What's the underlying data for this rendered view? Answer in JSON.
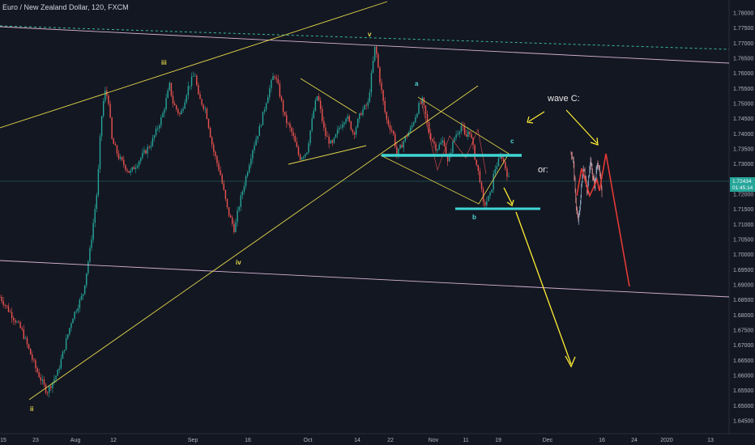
{
  "chart_data": {
    "type": "candlestick",
    "title": "Euro / New Zealand Dollar, 120, FXCM",
    "x_ticks": [
      "15",
      "23",
      "Aug",
      "12",
      "Sep",
      "16",
      "Oct",
      "14",
      "22",
      "Nov",
      "11",
      "19",
      "Dec",
      "16",
      "24",
      "2020",
      "13"
    ],
    "y_ticks": [
      "1.78000",
      "1.77500",
      "1.77000",
      "1.76500",
      "1.76000",
      "1.75500",
      "1.75000",
      "1.74500",
      "1.74000",
      "1.73500",
      "1.73000",
      "1.72500",
      "1.72000",
      "1.71500",
      "1.71000",
      "1.70500",
      "1.70000",
      "1.69500",
      "1.69000",
      "1.68500",
      "1.68000",
      "1.67500",
      "1.67000",
      "1.66500",
      "1.66000",
      "1.65500",
      "1.65000",
      "1.64500"
    ],
    "ylim": [
      1.644,
      1.782
    ],
    "current_price": "1.72434",
    "countdown": "01:45:14",
    "wave_labels": [
      "ii",
      "iii",
      "iv",
      "v",
      "a",
      "b",
      "c"
    ],
    "annotations": [
      "wave C:",
      "or:"
    ],
    "price_path": [
      [
        0,
        1.686
      ],
      [
        6,
        1.675
      ],
      [
        10,
        1.662
      ],
      [
        13,
        1.6545
      ],
      [
        16,
        1.661
      ],
      [
        20,
        1.679
      ],
      [
        23,
        1.687
      ],
      [
        25,
        1.702
      ],
      [
        27,
        1.722
      ],
      [
        28,
        1.744
      ],
      [
        29,
        1.754
      ],
      [
        30,
        1.752
      ],
      [
        31,
        1.738
      ],
      [
        33,
        1.732
      ],
      [
        36,
        1.727
      ],
      [
        39,
        1.732
      ],
      [
        42,
        1.737
      ],
      [
        45,
        1.746
      ],
      [
        47,
        1.756
      ],
      [
        48,
        1.75
      ],
      [
        50,
        1.746
      ],
      [
        52,
        1.755
      ],
      [
        54,
        1.76
      ],
      [
        55,
        1.752
      ],
      [
        57,
        1.748
      ],
      [
        59,
        1.735
      ],
      [
        61,
        1.727
      ],
      [
        63,
        1.715
      ],
      [
        65,
        1.708
      ],
      [
        66,
        1.715
      ],
      [
        68,
        1.725
      ],
      [
        70,
        1.735
      ],
      [
        72,
        1.742
      ],
      [
        74,
        1.752
      ],
      [
        76,
        1.76
      ],
      [
        77,
        1.756
      ],
      [
        79,
        1.745
      ],
      [
        81,
        1.74
      ],
      [
        83,
        1.732
      ],
      [
        85,
        1.734
      ],
      [
        87,
        1.748
      ],
      [
        88,
        1.753
      ],
      [
        90,
        1.74
      ],
      [
        92,
        1.736
      ],
      [
        94,
        1.742
      ],
      [
        96,
        1.746
      ],
      [
        98,
        1.74
      ],
      [
        100,
        1.747
      ],
      [
        102,
        1.75
      ],
      [
        103,
        1.76
      ],
      [
        104,
        1.7695
      ],
      [
        105,
        1.76
      ],
      [
        106,
        1.752
      ],
      [
        107,
        1.745
      ],
      [
        109,
        1.74
      ],
      [
        110,
        1.733
      ],
      [
        112,
        1.738
      ],
      [
        114,
        1.742
      ],
      [
        116,
        1.749
      ],
      [
        117,
        1.751
      ],
      [
        118,
        1.746
      ],
      [
        119,
        1.74
      ],
      [
        121,
        1.735
      ],
      [
        123,
        1.738
      ],
      [
        124,
        1.73
      ],
      [
        126,
        1.739
      ],
      [
        128,
        1.743
      ],
      [
        129,
        1.738
      ],
      [
        130,
        1.742
      ],
      [
        131,
        1.736
      ],
      [
        132,
        1.73
      ],
      [
        133,
        1.725
      ],
      [
        134,
        1.716
      ],
      [
        136,
        1.72
      ],
      [
        137,
        1.728
      ],
      [
        139,
        1.733
      ],
      [
        140,
        1.729
      ],
      [
        141,
        1.725
      ]
    ]
  },
  "colors": {
    "background": "#131722",
    "up": "#26a69a",
    "down": "#ef5350",
    "trendline": "#e6d84a",
    "channel": "#d8b4d4",
    "level": "#3fd6d3",
    "dashed": "#3bb89a",
    "projection_main": "#ffee33",
    "projection_alt": "#e53935",
    "price_badge": "#26a69a"
  }
}
